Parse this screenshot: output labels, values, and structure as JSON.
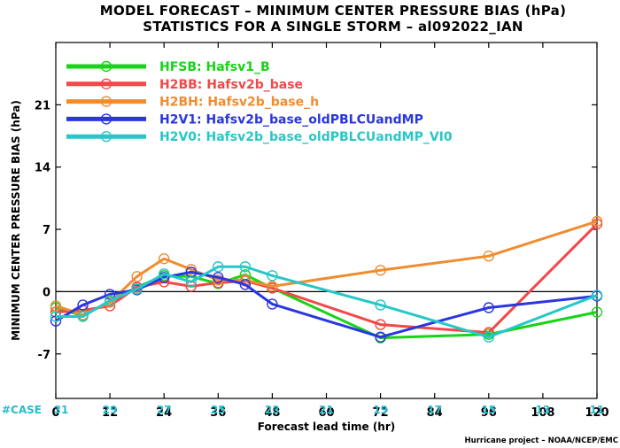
{
  "chart_data": {
    "type": "line",
    "title": "MODEL FORECAST – MINIMUM CENTER PRESSURE BIAS (hPa)",
    "subtitle": "STATISTICS FOR A SINGLE STORM – al092022_IAN",
    "xlabel": "Forecast lead time (hr)",
    "ylabel": "MINIMUM CENTER PRESSURE BIAS (hPa)",
    "xlim": [
      0,
      120
    ],
    "ylim": [
      -12,
      28
    ],
    "x_ticks": [
      0,
      12,
      24,
      36,
      48,
      60,
      72,
      84,
      96,
      108,
      120
    ],
    "y_ticks": [
      -7,
      0,
      7,
      14,
      21
    ],
    "grid": false,
    "legend_position": "top-left",
    "zero_line": true,
    "case_label": "#CASE",
    "case_counts": [
      31,
      29,
      27,
      25,
      23,
      21,
      19,
      17,
      15,
      13,
      11
    ],
    "credit": "Hurricane project – NOAA/NCEP/EMC",
    "series": [
      {
        "name": "HFSB: Hafsv1_B",
        "color": "#16d416",
        "x": [
          0,
          6,
          12,
          18,
          24,
          30,
          36,
          42,
          48,
          72,
          96,
          120
        ],
        "y": [
          -1.8,
          -2.7,
          -1.1,
          0.5,
          1.8,
          1.7,
          0.9,
          1.9,
          0.4,
          -5.2,
          -4.8,
          -2.3
        ]
      },
      {
        "name": "H2BB: Hafsv2b_base",
        "color": "#f24848",
        "x": [
          0,
          6,
          12,
          18,
          24,
          30,
          36,
          42,
          48,
          72,
          96,
          120
        ],
        "y": [
          -2.3,
          -2.1,
          -1.6,
          0.5,
          1.1,
          0.6,
          1.0,
          1.2,
          0.4,
          -3.7,
          -4.6,
          7.6
        ]
      },
      {
        "name": "H2BH: Hafsv2b_base_h",
        "color": "#f08c30",
        "x": [
          0,
          6,
          12,
          18,
          24,
          30,
          36,
          42,
          48,
          72,
          96,
          120
        ],
        "y": [
          -1.6,
          -2.6,
          -1.2,
          1.7,
          3.7,
          2.5,
          1.3,
          1.3,
          0.6,
          2.4,
          4.0,
          7.9
        ]
      },
      {
        "name": "H2V1: Hafsv2b_base_oldPBLCUandMP",
        "color": "#2a36e0",
        "x": [
          0,
          6,
          12,
          18,
          24,
          30,
          36,
          42,
          48,
          72,
          96,
          120
        ],
        "y": [
          -3.3,
          -1.5,
          -0.3,
          0.2,
          1.6,
          2.2,
          1.6,
          0.8,
          -1.4,
          -5.1,
          -1.8,
          -0.5
        ]
      },
      {
        "name": "H2V0: Hafsv2b_base_oldPBLCUandMP_VI0",
        "color": "#27c7c7",
        "x": [
          0,
          6,
          12,
          18,
          24,
          30,
          36,
          42,
          48,
          72,
          96,
          120
        ],
        "y": [
          -2.8,
          -2.8,
          -1.0,
          0.3,
          2.0,
          1.1,
          2.8,
          2.8,
          1.8,
          -1.5,
          -5.1,
          -0.4
        ]
      }
    ]
  }
}
